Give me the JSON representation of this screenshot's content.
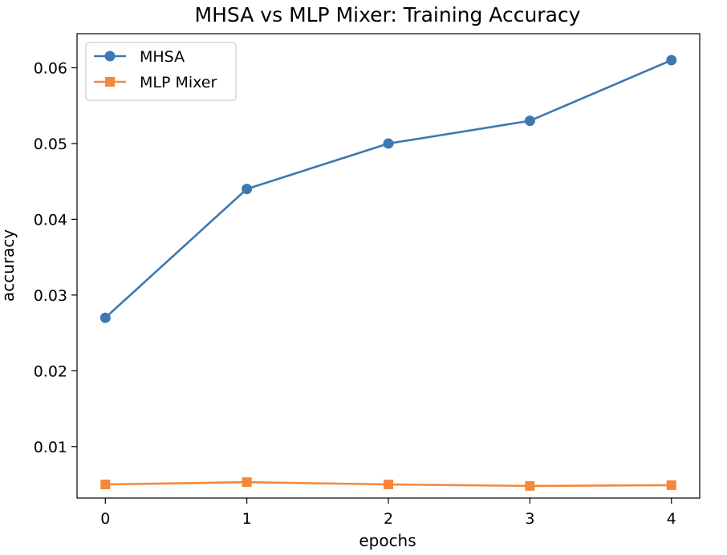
{
  "chart_data": {
    "type": "line",
    "title": "MHSA vs MLP Mixer: Training Accuracy",
    "xlabel": "epochs",
    "ylabel": "accuracy",
    "x": [
      0,
      1,
      2,
      3,
      4
    ],
    "xticks": [
      "0",
      "1",
      "2",
      "3",
      "4"
    ],
    "yticks": [
      "0.01",
      "0.02",
      "0.03",
      "0.04",
      "0.05",
      "0.06"
    ],
    "ytick_values": [
      0.01,
      0.02,
      0.03,
      0.04,
      0.05,
      0.06
    ],
    "xlim": [
      -0.2,
      4.2
    ],
    "ylim": [
      0.0032,
      0.0645
    ],
    "grid": false,
    "legend_position": "top-left",
    "series": [
      {
        "name": "MHSA",
        "values": [
          0.027,
          0.044,
          0.05,
          0.053,
          0.061
        ],
        "color": "#3d78b1",
        "marker": "circle"
      },
      {
        "name": "MLP Mixer",
        "values": [
          0.005,
          0.0053,
          0.005,
          0.0048,
          0.0049
        ],
        "color": "#f5883a",
        "marker": "square"
      }
    ]
  }
}
